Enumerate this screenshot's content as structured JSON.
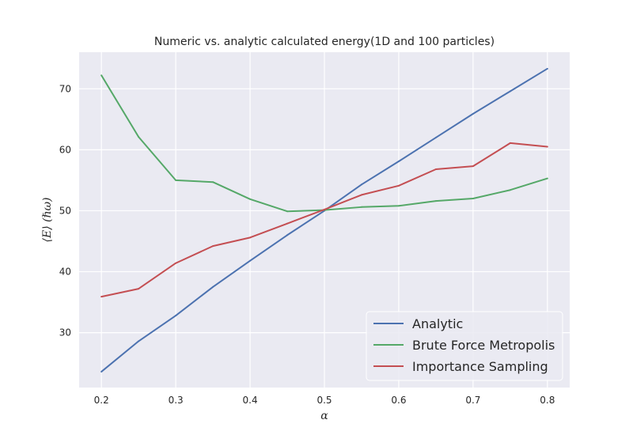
{
  "chart_data": {
    "type": "line",
    "title": "Numeric vs. analytic calculated energy(1D and 100 particles)",
    "xlabel": "α",
    "ylabel": "⟨E⟩ (ℏω)",
    "xlim": [
      0.17,
      0.83
    ],
    "ylim": [
      21,
      76
    ],
    "xticks": [
      0.2,
      0.3,
      0.4,
      0.5,
      0.6,
      0.7,
      0.8
    ],
    "xtick_labels": [
      "0.2",
      "0.3",
      "0.4",
      "0.5",
      "0.6",
      "0.7",
      "0.8"
    ],
    "yticks": [
      30,
      40,
      50,
      60,
      70
    ],
    "ytick_labels": [
      "30",
      "40",
      "50",
      "60",
      "70"
    ],
    "grid": true,
    "legend_position": "lower-right",
    "x": [
      0.2,
      0.25,
      0.3,
      0.35,
      0.4,
      0.45,
      0.5,
      0.55,
      0.6,
      0.65,
      0.7,
      0.75,
      0.8
    ],
    "series": [
      {
        "name": "Analytic",
        "color": "#4c72b0",
        "values": [
          23.6,
          28.6,
          32.8,
          37.5,
          41.8,
          46.0,
          50.0,
          54.3,
          58.1,
          62.0,
          65.9,
          69.6,
          73.3
        ]
      },
      {
        "name": "Brute Force Metropolis",
        "color": "#55a868",
        "values": [
          72.2,
          62.1,
          55.0,
          54.7,
          51.9,
          49.9,
          50.1,
          50.6,
          50.8,
          51.6,
          52.0,
          53.4,
          55.3
        ]
      },
      {
        "name": "Importance Sampling",
        "color": "#c44e52",
        "values": [
          35.9,
          37.2,
          41.4,
          44.2,
          45.6,
          47.9,
          50.2,
          52.6,
          54.1,
          56.8,
          57.3,
          61.1,
          60.5
        ]
      }
    ]
  },
  "style": {
    "plot_background": "#eaeaf2",
    "grid_color": "#ffffff",
    "legend_background": "#eaeaf2"
  }
}
